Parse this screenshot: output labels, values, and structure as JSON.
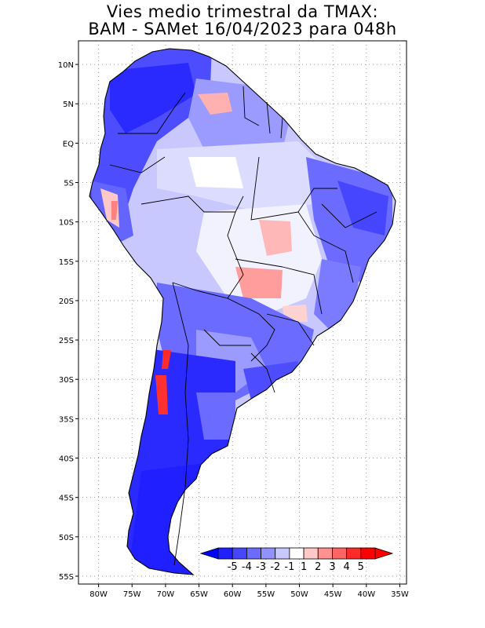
{
  "title_line1": "Vies medio trimestral da TMAX:",
  "title_line2": "BAM - SAMet 16/04/2023  para 048h",
  "map": {
    "lon_range": [
      -83,
      -34
    ],
    "lat_range": [
      -56,
      13
    ],
    "lon_ticks": [
      "80W",
      "75W",
      "70W",
      "65W",
      "60W",
      "55W",
      "50W",
      "45W",
      "40W",
      "35W"
    ],
    "lat_ticks": [
      "10N",
      "5N",
      "EQ",
      "5S",
      "10S",
      "15S",
      "20S",
      "25S",
      "30S",
      "35S",
      "40S",
      "45S",
      "50S",
      "55S"
    ],
    "grid": "dotted"
  },
  "colorbar": {
    "labels": [
      "-5",
      "-4",
      "-3",
      "-2",
      "-1",
      "1",
      "2",
      "3",
      "4",
      "5"
    ],
    "colors": [
      "#1f1fff",
      "#4646ff",
      "#6b6bff",
      "#9191ff",
      "#c8c8ff",
      "#ffffff",
      "#ffc8c8",
      "#ff9191",
      "#ff6464",
      "#ff2a2a",
      "#ff0000"
    ],
    "low_arrow_color": "#0000ff",
    "high_arrow_color": "#ff0000"
  }
}
